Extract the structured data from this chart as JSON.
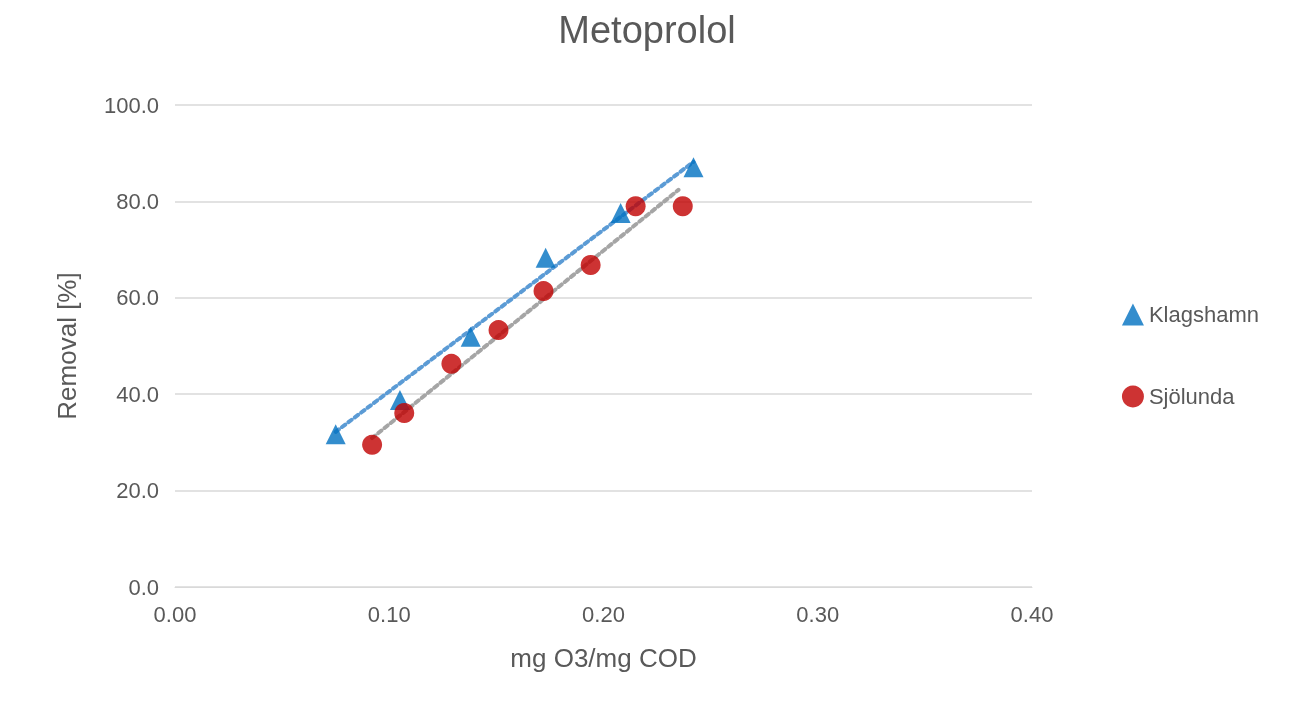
{
  "chart_data": {
    "type": "scatter",
    "title": "Metoprolol",
    "xlabel": "mg O3/mg COD",
    "ylabel": "Removal [%]",
    "xlim": [
      0,
      0.4
    ],
    "xticks": [
      {
        "value": 0,
        "label": "0.00"
      },
      {
        "value": 0.1,
        "label": "0.10"
      },
      {
        "value": 0.2,
        "label": "0.20"
      },
      {
        "value": 0.3,
        "label": "0.30"
      },
      {
        "value": 0.4,
        "label": "0.40"
      }
    ],
    "ylim": [
      0,
      100
    ],
    "yticks": [
      {
        "value": 0,
        "label": "0.0"
      },
      {
        "value": 20,
        "label": "20.0"
      },
      {
        "value": 40,
        "label": "40.0"
      },
      {
        "value": 60,
        "label": "60.0"
      },
      {
        "value": 80,
        "label": "80.0"
      },
      {
        "value": 100,
        "label": "100.0"
      }
    ],
    "grid": "y",
    "legend": "right",
    "series": [
      {
        "name": "Klagshamn",
        "color": "#0070c0",
        "marker": "triangle",
        "x": [
          0.075,
          0.105,
          0.138,
          0.173,
          0.208,
          0.242
        ],
        "values": [
          31.7,
          38.8,
          51.9,
          68.3,
          77.6,
          87.1
        ]
      },
      {
        "name": "Sjölunda",
        "color": "#c00000",
        "marker": "circle",
        "x": [
          0.092,
          0.107,
          0.129,
          0.151,
          0.172,
          0.194,
          0.215,
          0.237
        ],
        "values": [
          29.5,
          36.1,
          46.3,
          53.3,
          61.4,
          66.8,
          79.0,
          79.0
        ]
      },
      {
        "type": "line",
        "color": "#5b9bd5",
        "marker": "none",
        "line_style": "dotted",
        "x": [
          0.075,
          0.242
        ],
        "values": [
          32.2,
          88.2
        ]
      },
      {
        "type": "line",
        "color": "#a5a5a5",
        "marker": "none",
        "line_style": "dotted",
        "x": [
          0.092,
          0.235
        ],
        "values": [
          30.9,
          82.4
        ]
      }
    ]
  }
}
